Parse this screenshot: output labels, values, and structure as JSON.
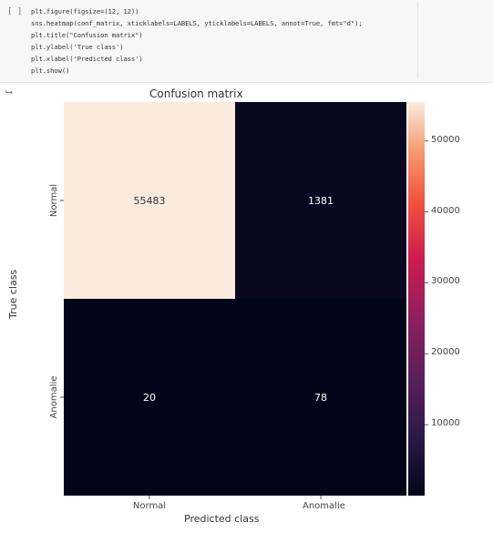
{
  "code_cell": {
    "prompt": "[ ]",
    "lines": [
      "plt.figure(figsize=(12, 12))",
      "sns.heatmap(conf_matrix, xticklabels=LABELS, yticklabels=LABELS, annot=True, fmt=\"d\");",
      "plt.title(\"Confusion matrix\")",
      "plt.ylabel('True class')",
      "plt.xlabel('Predicted class')",
      "plt.show()"
    ],
    "output_icon": "output-arrow-icon"
  },
  "chart_data": {
    "type": "heatmap",
    "title": "Confusion matrix",
    "xlabel": "Predicted class",
    "ylabel": "True class",
    "x_categories": [
      "Normal",
      "Anomalie"
    ],
    "y_categories": [
      "Normal",
      "Anomalie"
    ],
    "values": [
      [
        55483,
        1381
      ],
      [
        20,
        78
      ]
    ],
    "annot": true,
    "colormap": "rocket",
    "colorbar": {
      "ticks": [
        10000,
        20000,
        30000,
        40000,
        50000
      ],
      "range": [
        0,
        55483
      ]
    }
  }
}
